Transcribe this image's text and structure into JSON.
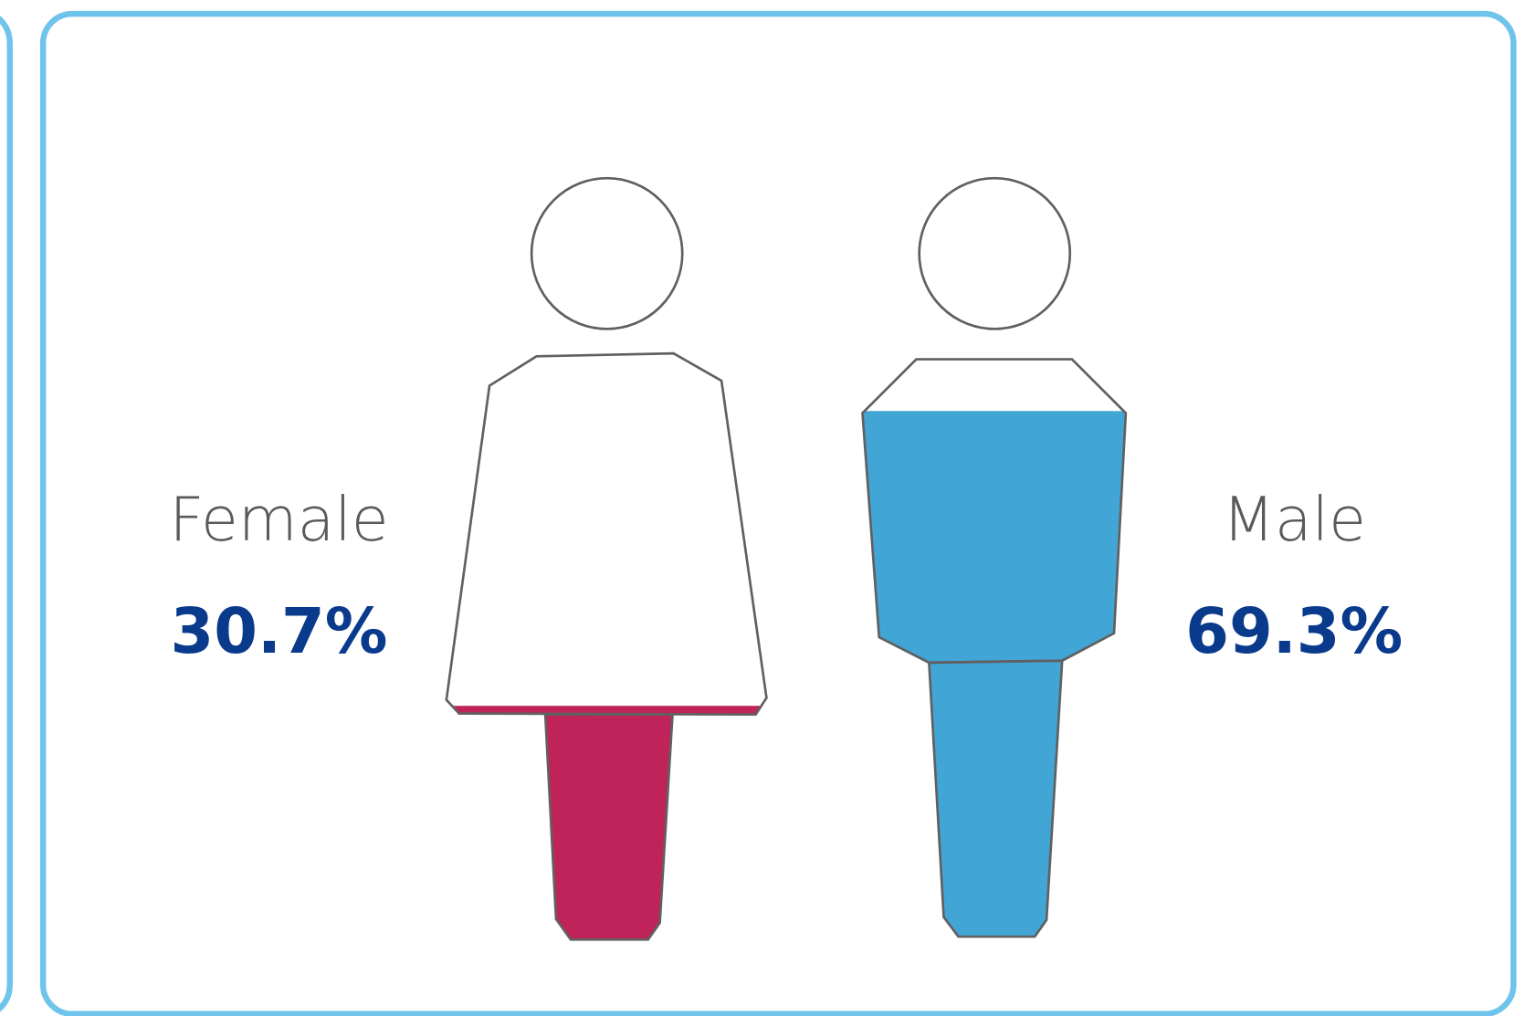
{
  "chart_data": {
    "type": "pictogram",
    "categories": [
      "Female",
      "Male"
    ],
    "values": [
      30.7,
      69.3
    ],
    "value_labels": [
      "30.7%",
      "69.3%"
    ],
    "colors": [
      "#c0235a",
      "#41a6d6"
    ],
    "ylim": [
      0,
      100
    ]
  }
}
